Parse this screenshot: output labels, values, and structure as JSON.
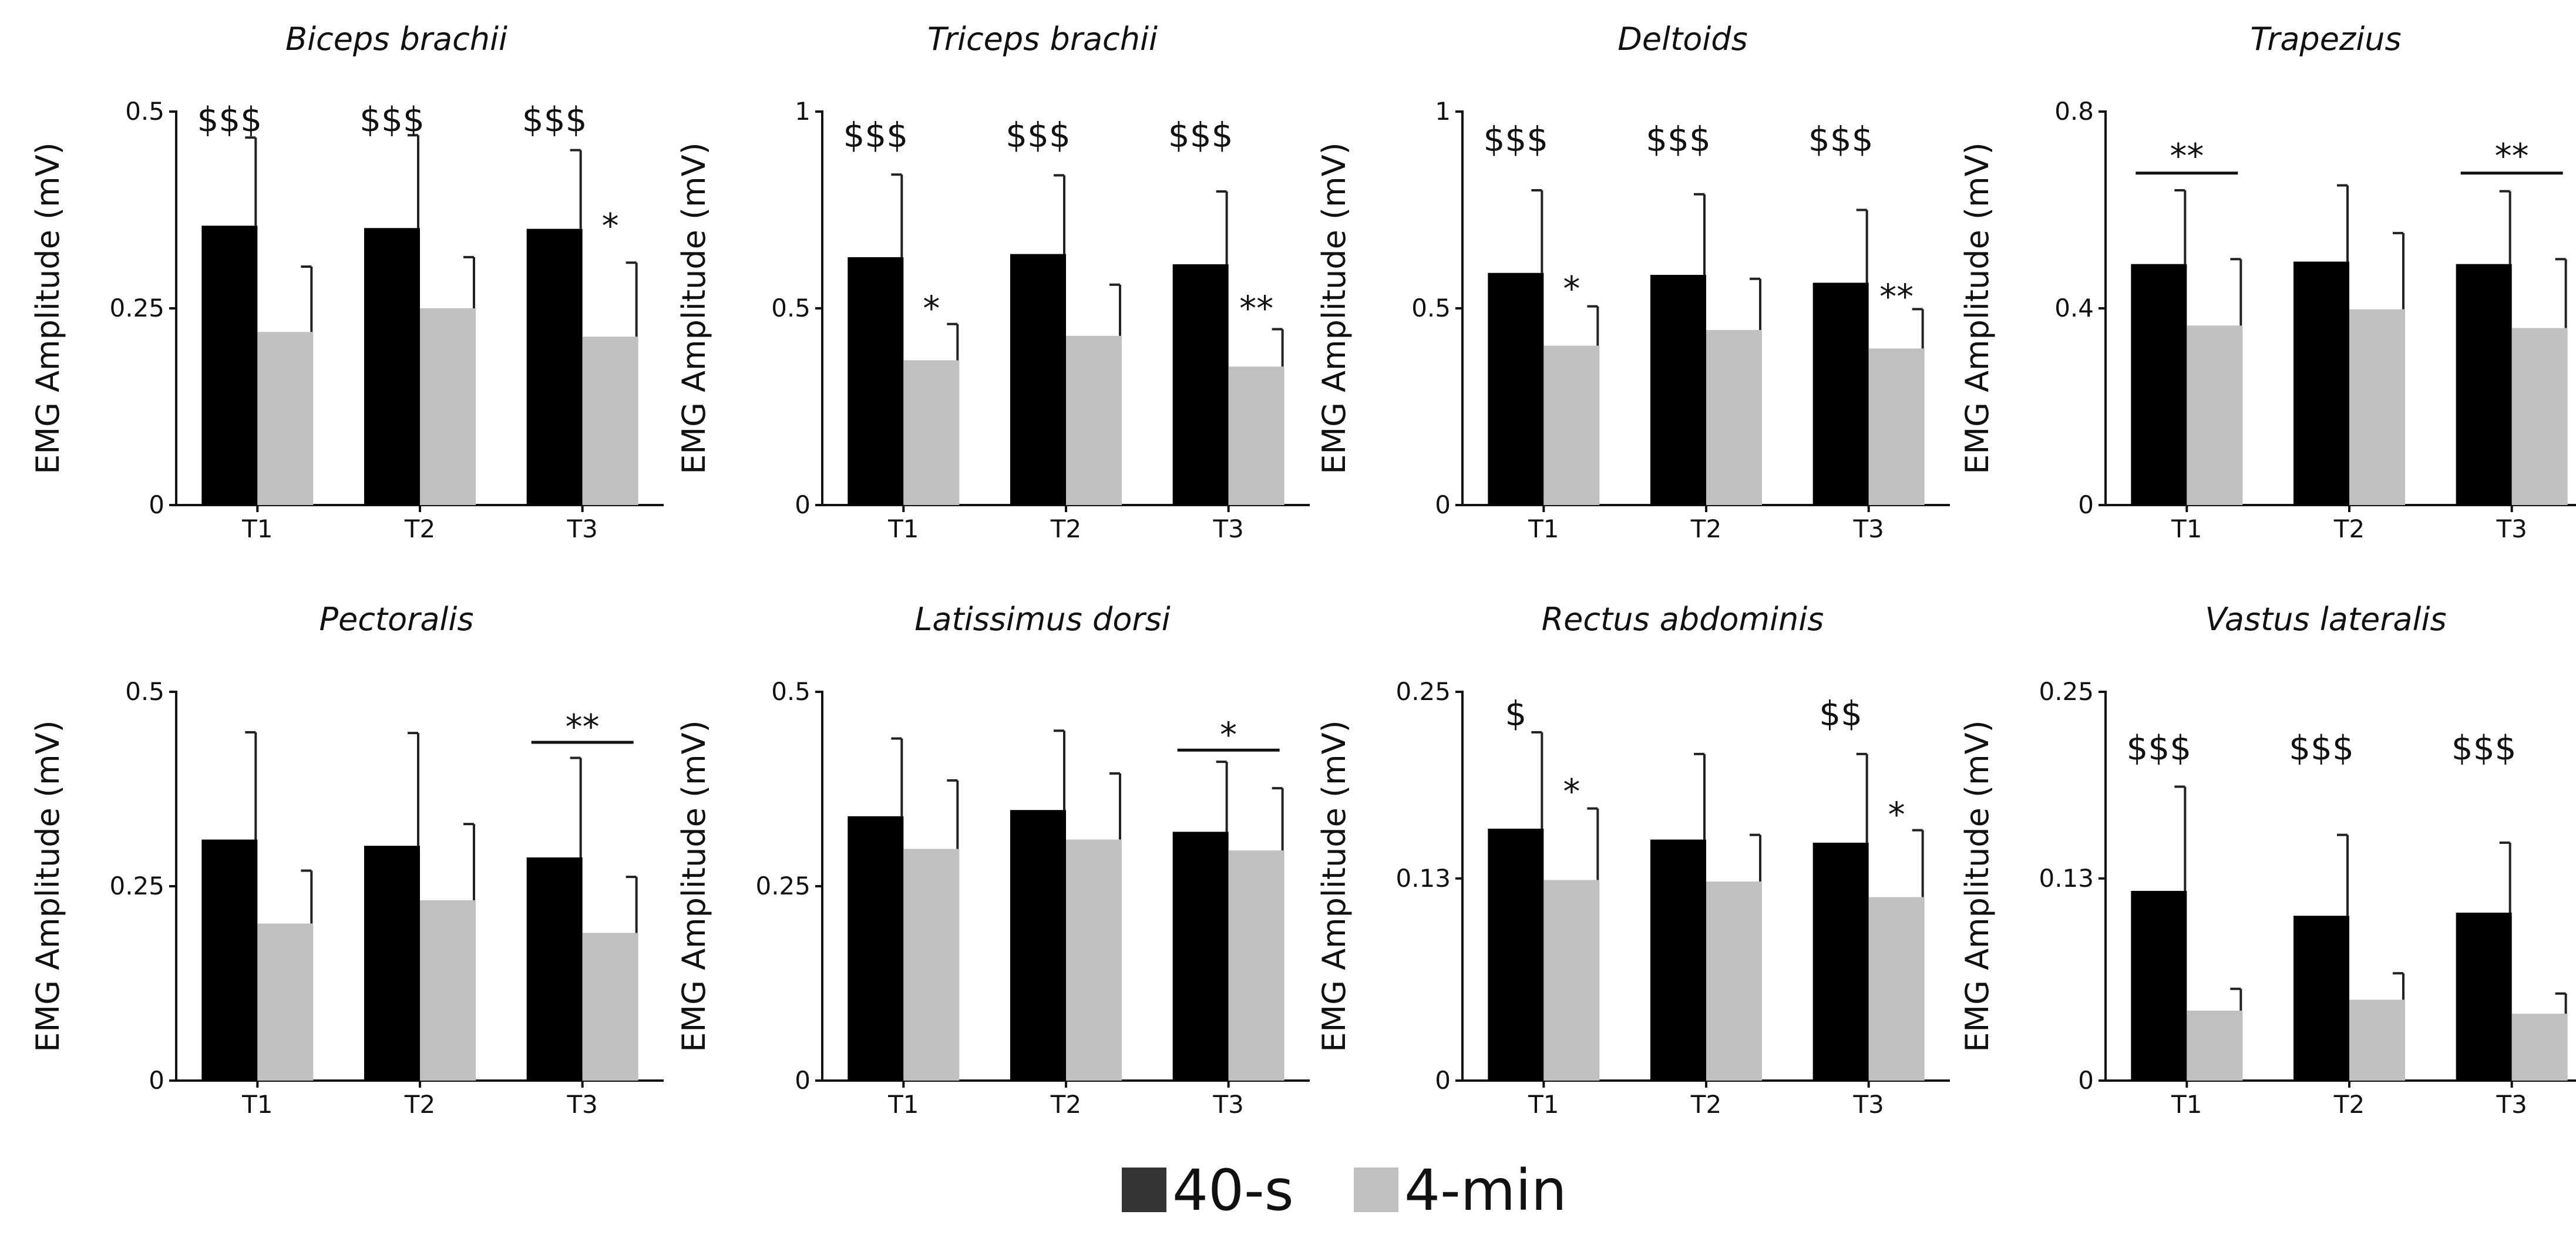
{
  "colors": {
    "40-s": "#000000",
    "4-min": "#c0c0c0",
    "error": "#222222",
    "axis": "#111111"
  },
  "legend": {
    "items": [
      {
        "label": "40-s",
        "color": "#333333"
      },
      {
        "label": "4-min",
        "color": "#c0c0c0"
      }
    ]
  },
  "chart_data": [
    {
      "type": "bar",
      "title": "Biceps brachii",
      "ylabel": "EMG Amplitude (mV)",
      "categories": [
        "T1",
        "T2",
        "T3"
      ],
      "ylim": [
        0,
        0.5
      ],
      "yticks": [
        0,
        0.25,
        0.5
      ],
      "ytick_labels": [
        "0",
        "0.25",
        "0.5"
      ],
      "series": [
        {
          "name": "40-s",
          "values": [
            0.355,
            0.352,
            0.351
          ],
          "errors": [
            0.112,
            0.118,
            0.1
          ]
        },
        {
          "name": "4-min",
          "values": [
            0.22,
            0.25,
            0.214
          ],
          "errors": [
            0.083,
            0.065,
            0.094
          ]
        }
      ],
      "annotations": [
        {
          "text": "$$$",
          "category": "T1",
          "anchor": "40-s",
          "y": 0.49
        },
        {
          "text": "$$$",
          "category": "T2",
          "anchor": "40-s",
          "y": 0.49
        },
        {
          "text": "$$$",
          "category": "T3",
          "anchor": "40-s",
          "y": 0.49
        },
        {
          "text": "*",
          "category": "T3",
          "anchor": "4-min",
          "y": 0.355
        }
      ]
    },
    {
      "type": "bar",
      "title": "Triceps brachii",
      "ylabel": "EMG Amplitude (mV)",
      "categories": [
        "T1",
        "T2",
        "T3"
      ],
      "ylim": [
        0,
        1
      ],
      "yticks": [
        0,
        0.5,
        1
      ],
      "ytick_labels": [
        "0",
        "0.5",
        "1"
      ],
      "series": [
        {
          "name": "40-s",
          "values": [
            0.63,
            0.638,
            0.612
          ],
          "errors": [
            0.21,
            0.2,
            0.185
          ]
        },
        {
          "name": "4-min",
          "values": [
            0.368,
            0.43,
            0.352
          ],
          "errors": [
            0.092,
            0.13,
            0.095
          ]
        }
      ],
      "annotations": [
        {
          "text": "$$$",
          "category": "T1",
          "anchor": "40-s",
          "y": 0.94
        },
        {
          "text": "$$$",
          "category": "T2",
          "anchor": "40-s",
          "y": 0.94
        },
        {
          "text": "$$$",
          "category": "T3",
          "anchor": "40-s",
          "y": 0.94
        },
        {
          "text": "*",
          "category": "T1",
          "anchor": "4-min",
          "y": 0.5
        },
        {
          "text": "**",
          "category": "T3",
          "anchor": "4-min",
          "y": 0.5
        }
      ]
    },
    {
      "type": "bar",
      "title": "Deltoids",
      "ylabel": "EMG Amplitude (mV)",
      "categories": [
        "T1",
        "T2",
        "T3"
      ],
      "ylim": [
        0,
        1
      ],
      "yticks": [
        0,
        0.5,
        1
      ],
      "ytick_labels": [
        "0",
        "0.5",
        "1"
      ],
      "series": [
        {
          "name": "40-s",
          "values": [
            0.59,
            0.585,
            0.565
          ],
          "errors": [
            0.21,
            0.205,
            0.185
          ]
        },
        {
          "name": "4-min",
          "values": [
            0.405,
            0.445,
            0.398
          ],
          "errors": [
            0.1,
            0.13,
            0.1
          ]
        }
      ],
      "annotations": [
        {
          "text": "$$$",
          "category": "T1",
          "anchor": "40-s",
          "y": 0.93
        },
        {
          "text": "$$$",
          "category": "T2",
          "anchor": "40-s",
          "y": 0.93
        },
        {
          "text": "$$$",
          "category": "T3",
          "anchor": "40-s",
          "y": 0.93
        },
        {
          "text": "*",
          "category": "T1",
          "anchor": "4-min",
          "y": 0.55
        },
        {
          "text": "**",
          "category": "T3",
          "anchor": "4-min",
          "y": 0.53
        }
      ]
    },
    {
      "type": "bar",
      "title": "Trapezius",
      "ylabel": "EMG Amplitude (mV)",
      "categories": [
        "T1",
        "T2",
        "T3"
      ],
      "ylim": [
        0,
        0.8
      ],
      "yticks": [
        0,
        0.4,
        0.8
      ],
      "ytick_labels": [
        "0",
        "0.4",
        "0.8"
      ],
      "series": [
        {
          "name": "40-s",
          "values": [
            0.49,
            0.495,
            0.49
          ],
          "errors": [
            0.15,
            0.155,
            0.148
          ]
        },
        {
          "name": "4-min",
          "values": [
            0.365,
            0.398,
            0.36
          ],
          "errors": [
            0.135,
            0.155,
            0.14
          ]
        }
      ],
      "annotations": [
        {
          "text": "**",
          "category": "T1",
          "anchor": "pair",
          "y": 0.71,
          "bracket_y": 0.675
        },
        {
          "text": "**",
          "category": "T3",
          "anchor": "pair",
          "y": 0.71,
          "bracket_y": 0.675
        }
      ]
    },
    {
      "type": "bar",
      "title": "Pectoralis",
      "ylabel": "EMG Amplitude (mV)",
      "categories": [
        "T1",
        "T2",
        "T3"
      ],
      "ylim": [
        0,
        0.5
      ],
      "yticks": [
        0,
        0.25,
        0.5
      ],
      "ytick_labels": [
        "0",
        "0.25",
        "0.5"
      ],
      "series": [
        {
          "name": "40-s",
          "values": [
            0.31,
            0.302,
            0.287
          ],
          "errors": [
            0.138,
            0.145,
            0.128
          ]
        },
        {
          "name": "4-min",
          "values": [
            0.202,
            0.232,
            0.19
          ],
          "errors": [
            0.068,
            0.098,
            0.072
          ]
        }
      ],
      "annotations": [
        {
          "text": "**",
          "category": "T3",
          "anchor": "pair",
          "y": 0.455,
          "bracket_y": 0.435
        }
      ]
    },
    {
      "type": "bar",
      "title": "Latissimus dorsi",
      "ylabel": "EMG Amplitude (mV)",
      "categories": [
        "T1",
        "T2",
        "T3"
      ],
      "ylim": [
        0,
        0.5
      ],
      "yticks": [
        0,
        0.25,
        0.5
      ],
      "ytick_labels": [
        "0",
        "0.25",
        "0.5"
      ],
      "series": [
        {
          "name": "40-s",
          "values": [
            0.34,
            0.348,
            0.32
          ],
          "errors": [
            0.1,
            0.102,
            0.09
          ]
        },
        {
          "name": "4-min",
          "values": [
            0.298,
            0.31,
            0.296
          ],
          "errors": [
            0.088,
            0.085,
            0.08
          ]
        }
      ],
      "annotations": [
        {
          "text": "*",
          "category": "T3",
          "anchor": "pair",
          "y": 0.445,
          "bracket_y": 0.425
        }
      ]
    },
    {
      "type": "bar",
      "title": "Rectus abdominis",
      "ylabel": "EMG Amplitude (mV)",
      "categories": [
        "T1",
        "T2",
        "T3"
      ],
      "ylim": [
        0,
        0.25
      ],
      "yticks": [
        0,
        0.13,
        0.25
      ],
      "ytick_labels": [
        "0",
        "0.13",
        "0.25"
      ],
      "series": [
        {
          "name": "40-s",
          "values": [
            0.162,
            0.155,
            0.153
          ],
          "errors": [
            0.062,
            0.055,
            0.057
          ]
        },
        {
          "name": "4-min",
          "values": [
            0.129,
            0.128,
            0.118
          ],
          "errors": [
            0.046,
            0.03,
            0.043
          ]
        }
      ],
      "annotations": [
        {
          "text": "$",
          "category": "T1",
          "anchor": "40-s",
          "y": 0.236
        },
        {
          "text": "$$",
          "category": "T3",
          "anchor": "40-s",
          "y": 0.236
        },
        {
          "text": "*",
          "category": "T1",
          "anchor": "4-min",
          "y": 0.186
        },
        {
          "text": "*",
          "category": "T3",
          "anchor": "4-min",
          "y": 0.171
        }
      ]
    },
    {
      "type": "bar",
      "title": "Vastus lateralis",
      "ylabel": "EMG Amplitude (mV)",
      "categories": [
        "T1",
        "T2",
        "T3"
      ],
      "ylim": [
        0,
        0.25
      ],
      "yticks": [
        0,
        0.13,
        0.25
      ],
      "ytick_labels": [
        "0",
        "0.13",
        "0.25"
      ],
      "series": [
        {
          "name": "40-s",
          "values": [
            0.122,
            0.106,
            0.108
          ],
          "errors": [
            0.067,
            0.052,
            0.045
          ]
        },
        {
          "name": "4-min",
          "values": [
            0.045,
            0.052,
            0.043
          ],
          "errors": [
            0.014,
            0.017,
            0.013
          ]
        }
      ],
      "annotations": [
        {
          "text": "$$$",
          "category": "T1",
          "anchor": "40-s",
          "y": 0.214
        },
        {
          "text": "$$$",
          "category": "T2",
          "anchor": "40-s",
          "y": 0.214
        },
        {
          "text": "$$$",
          "category": "T3",
          "anchor": "40-s",
          "y": 0.214
        }
      ]
    }
  ]
}
